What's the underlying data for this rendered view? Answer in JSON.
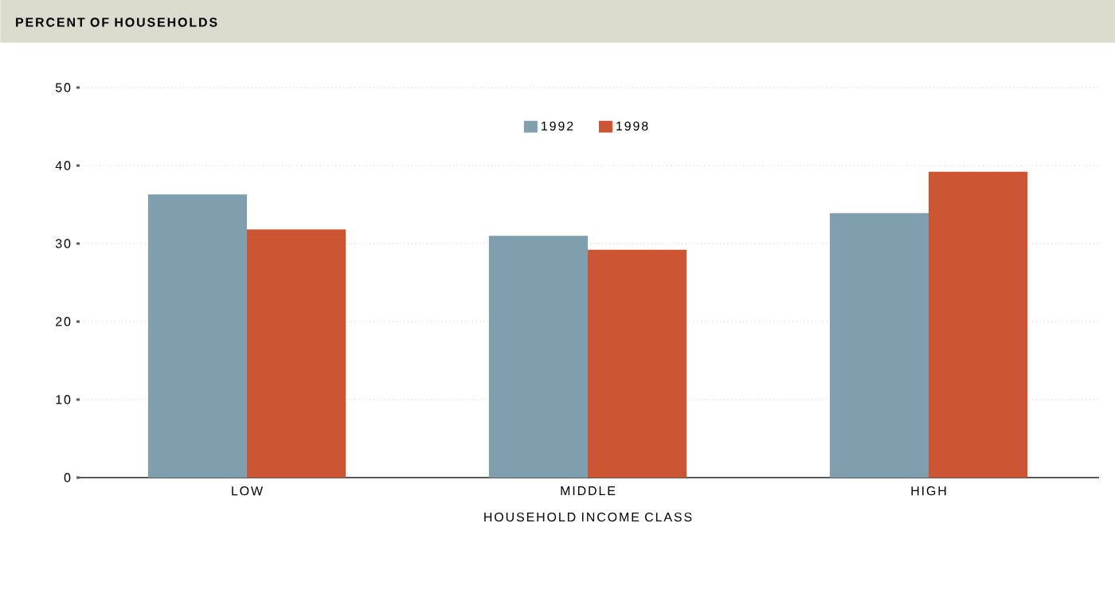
{
  "chart_data": {
    "type": "bar",
    "ylabel": "PERCENT OF HOUSEHOLDS",
    "xlabel": "HOUSEHOLD INCOME CLASS",
    "categories": [
      "LOW",
      "MIDDLE",
      "HIGH"
    ],
    "series": [
      {
        "name": "1992",
        "color": "#7f9fae",
        "values": [
          36.3,
          31.0,
          33.9
        ]
      },
      {
        "name": "1998",
        "color": "#cc5533",
        "values": [
          31.8,
          29.2,
          39.2
        ]
      }
    ],
    "ylim": [
      0,
      50
    ],
    "yticks": [
      0,
      10,
      20,
      30,
      40,
      50
    ],
    "grid": "y",
    "legend": "top"
  }
}
